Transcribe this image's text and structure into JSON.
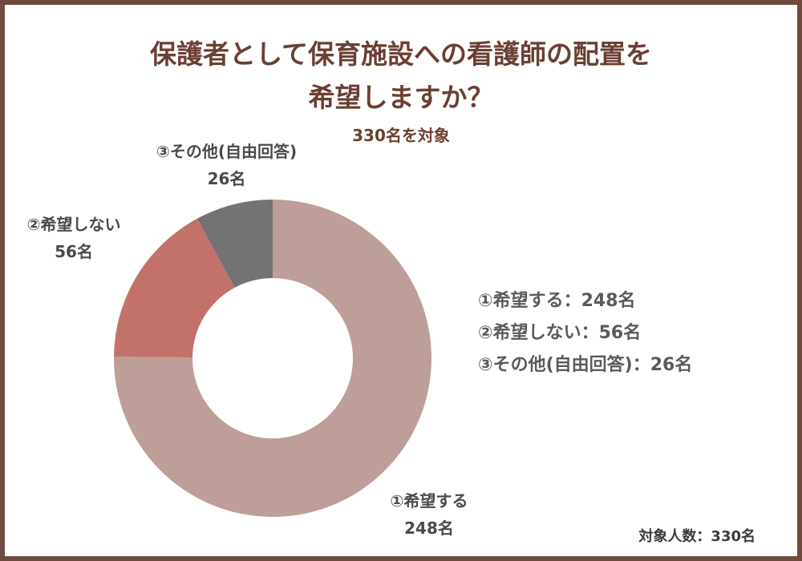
{
  "title_line1": "保護者として保育施設への看護師の配置を",
  "title_line2": "希望しますか？",
  "subtitle": "330名を対象",
  "footnote": "対象人数：330名",
  "chart_data": {
    "type": "pie",
    "donut": true,
    "title": "保護者として保育施設への看護師の配置を希望しますか？",
    "subtitle": "330名を対象",
    "total": 330,
    "categories": [
      "①希望する",
      "②希望しない",
      "③その他(自由回答)"
    ],
    "values": [
      248,
      56,
      26
    ],
    "value_labels": [
      "248名",
      "56名",
      "26名"
    ],
    "colors": [
      "#be9e98",
      "#c2726a",
      "#737373"
    ],
    "legend": {
      "placement": "right",
      "entries": [
        "①希望する：248名",
        "②希望しない：56名",
        "③その他(自由回答)：26名"
      ]
    }
  }
}
